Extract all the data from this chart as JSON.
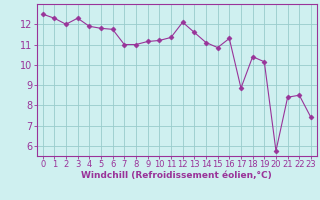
{
  "x": [
    0,
    1,
    2,
    3,
    4,
    5,
    6,
    7,
    8,
    9,
    10,
    11,
    12,
    13,
    14,
    15,
    16,
    17,
    18,
    19,
    20,
    21,
    22,
    23
  ],
  "y": [
    12.5,
    12.3,
    12.0,
    12.3,
    11.9,
    11.8,
    11.75,
    11.0,
    11.0,
    11.15,
    11.2,
    11.35,
    12.1,
    11.6,
    11.1,
    10.85,
    11.3,
    8.85,
    10.4,
    10.15,
    5.75,
    8.4,
    8.5,
    7.4
  ],
  "line_color": "#993399",
  "marker": "D",
  "marker_size": 2.5,
  "bg_color": "#cff0f0",
  "grid_color": "#99cccc",
  "xlabel": "Windchill (Refroidissement éolien,°C)",
  "xlabel_color": "#993399",
  "tick_color": "#993399",
  "axis_color": "#993399",
  "ylim": [
    5.5,
    13.0
  ],
  "xlim": [
    -0.5,
    23.5
  ],
  "yticks": [
    6,
    7,
    8,
    9,
    10,
    11,
    12
  ],
  "xticks": [
    0,
    1,
    2,
    3,
    4,
    5,
    6,
    7,
    8,
    9,
    10,
    11,
    12,
    13,
    14,
    15,
    16,
    17,
    18,
    19,
    20,
    21,
    22,
    23
  ],
  "tick_fontsize": 6,
  "xlabel_fontsize": 6.5,
  "xlabel_fontweight": "bold"
}
